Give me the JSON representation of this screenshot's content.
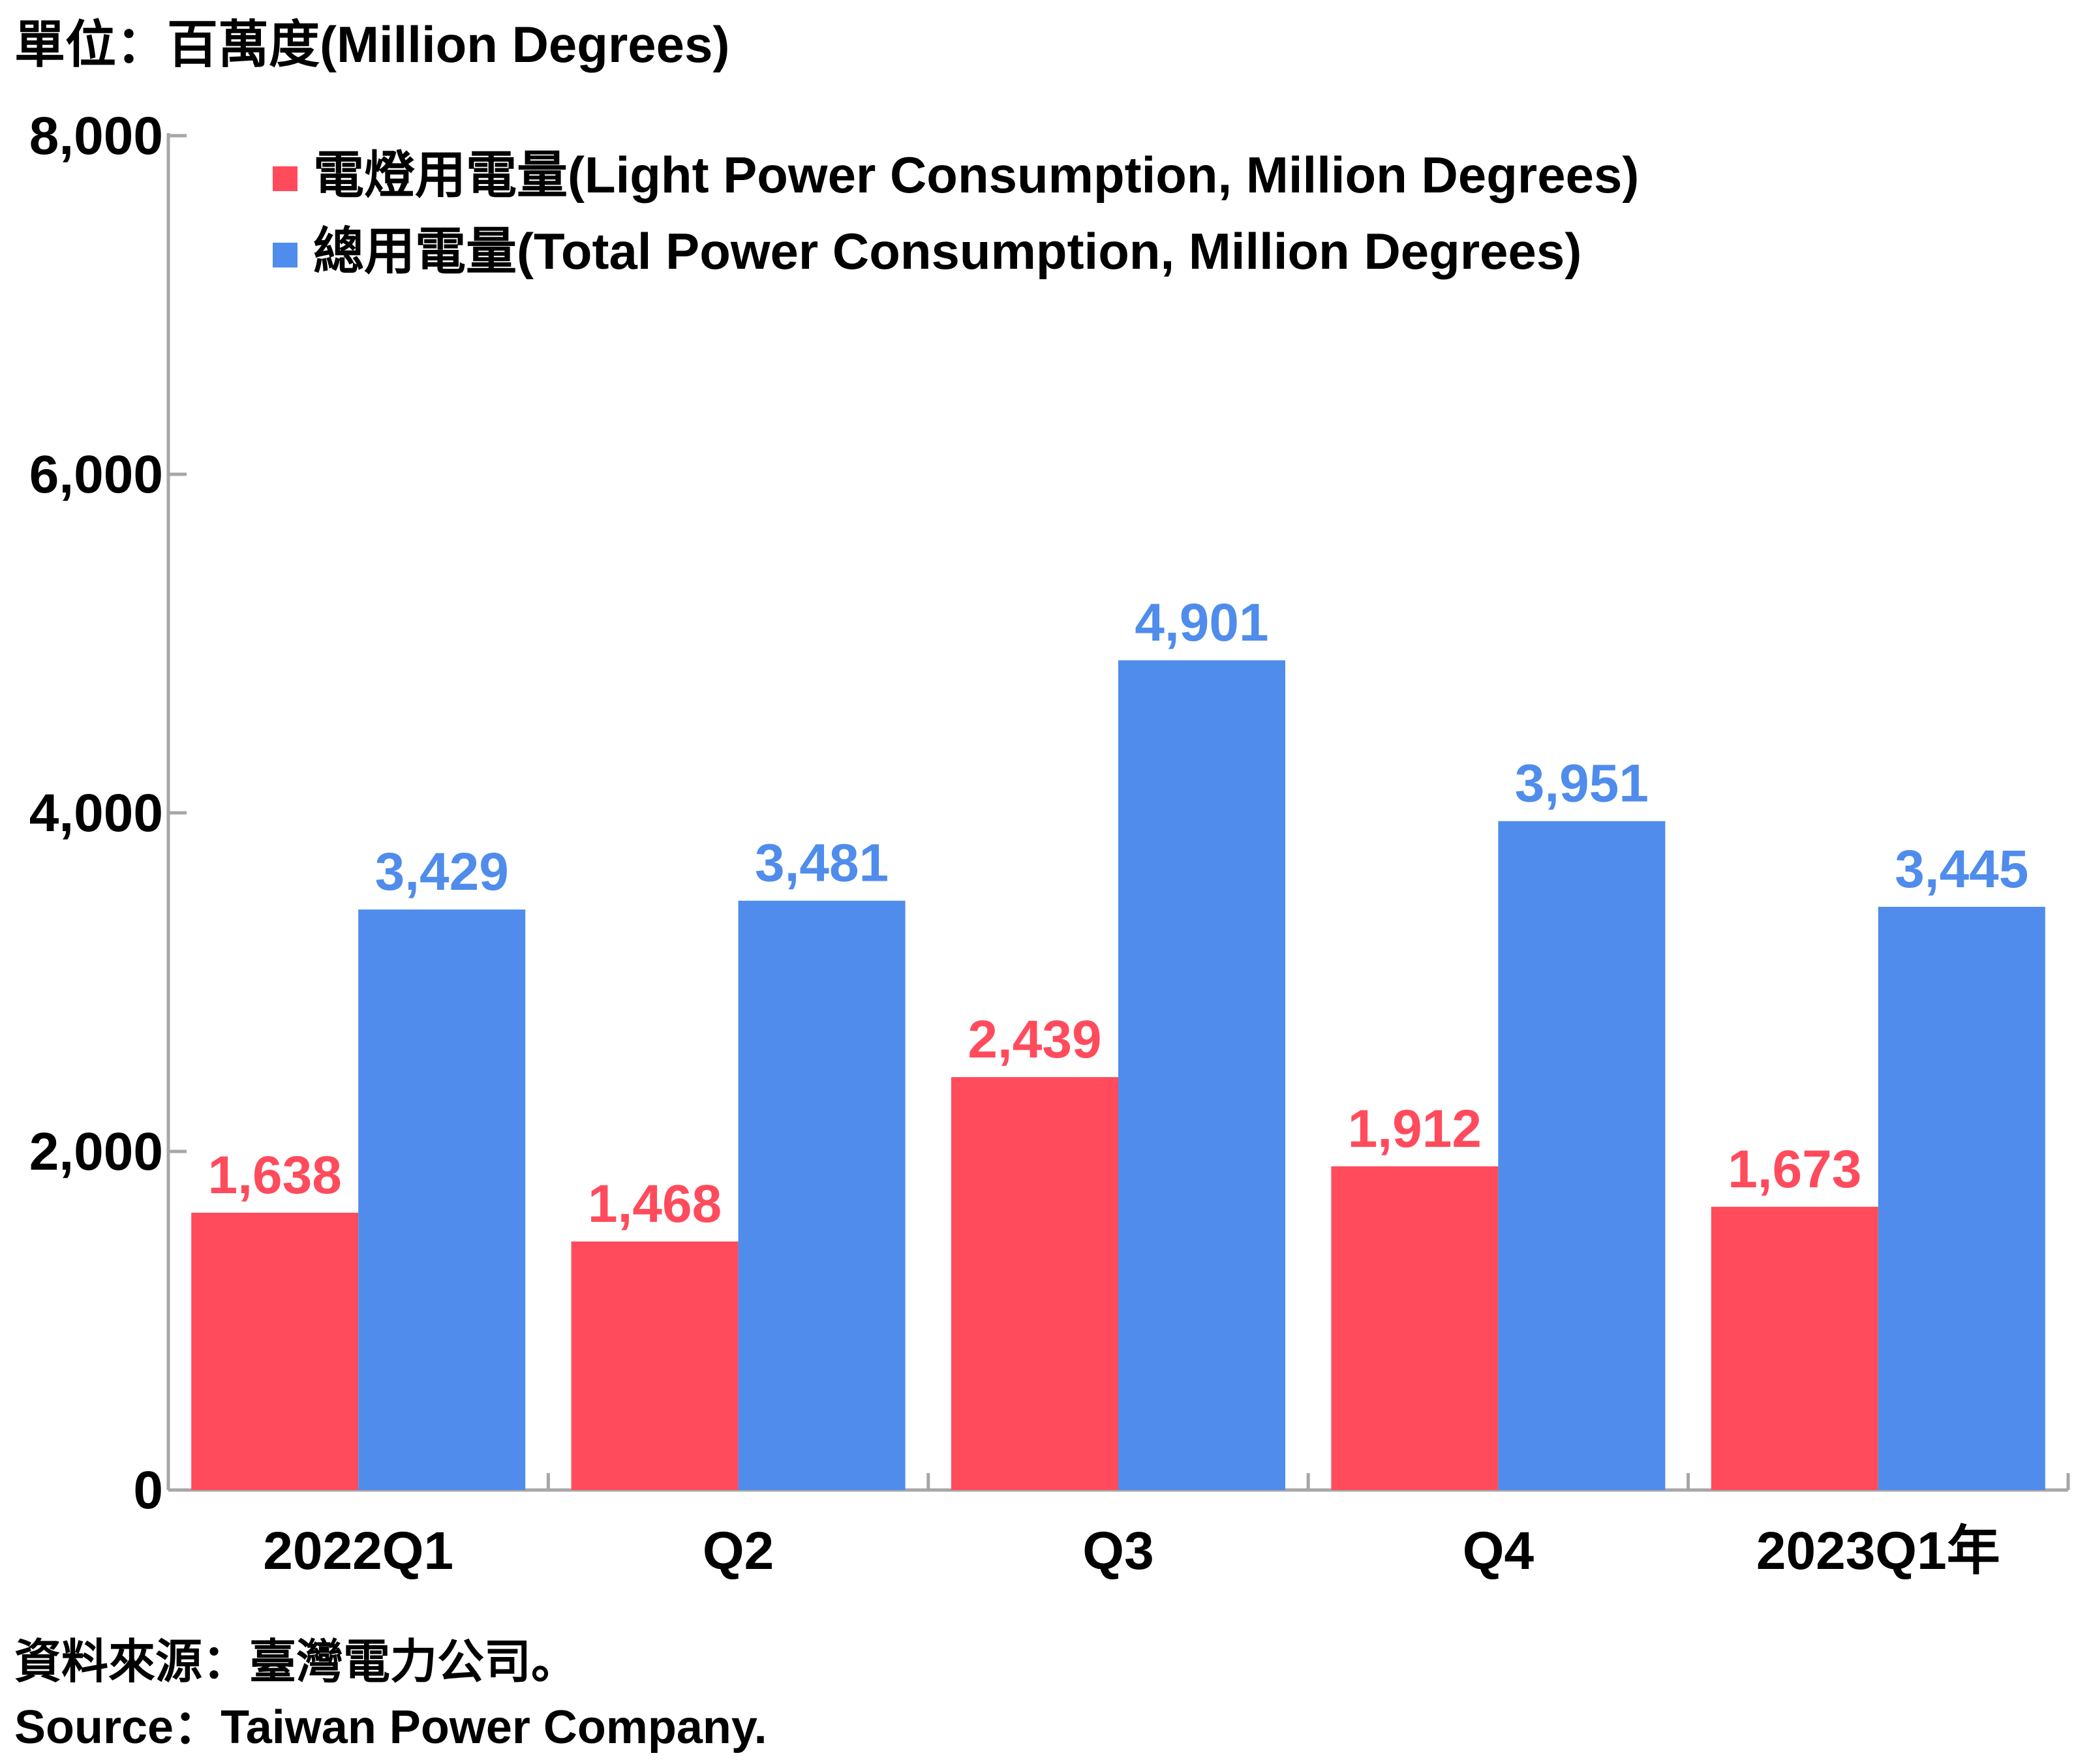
{
  "unit_label": "單位：百萬度(Million Degrees)",
  "source_zh": "資料來源：臺灣電力公司。",
  "source_en": "Source：Taiwan Power Company.",
  "colors": {
    "light": "#FF4B5C",
    "total": "#4F8CEB",
    "axis": "#A6A6A6",
    "text": "#000000"
  },
  "chart_data": {
    "type": "bar",
    "categories": [
      "2022Q1",
      "Q2",
      "Q3",
      "Q4",
      "2023Q1年"
    ],
    "series": [
      {
        "key": "light",
        "name": "電燈用電量(Light Power Consumption, Million Degrees)",
        "values": [
          1638,
          1468,
          2439,
          1912,
          1673
        ],
        "labels": [
          "1,638",
          "1,468",
          "2,439",
          "1,912",
          "1,673"
        ]
      },
      {
        "key": "total",
        "name": "總用電量(Total Power Consumption, Million Degrees)",
        "values": [
          3429,
          3481,
          4901,
          3951,
          3445
        ],
        "labels": [
          "3,429",
          "3,481",
          "4,901",
          "3,951",
          "3,445"
        ]
      }
    ],
    "ylim": [
      0,
      8000
    ],
    "yticks": [
      0,
      2000,
      4000,
      6000,
      8000
    ],
    "ytick_labels": [
      "0",
      "2,000",
      "4,000",
      "6,000",
      "8,000"
    ],
    "grid": false,
    "legend_position": "top-left"
  }
}
